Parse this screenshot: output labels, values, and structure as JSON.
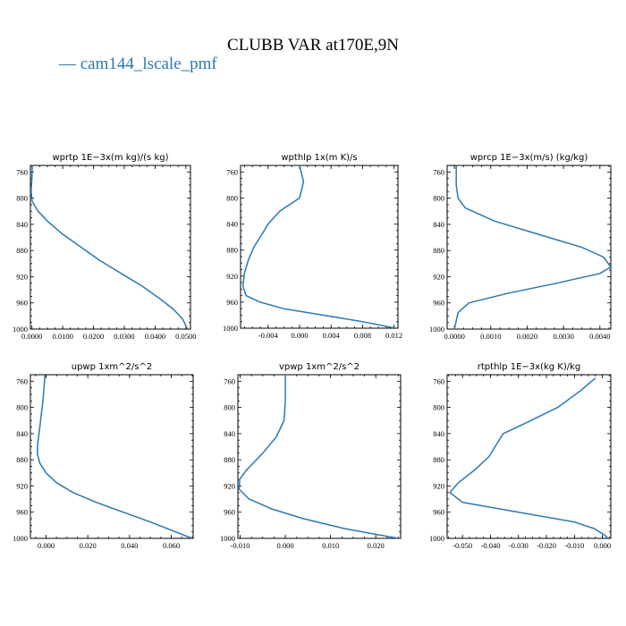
{
  "figure": {
    "title": "CLUBB VAR at170E,9N",
    "legend": [
      {
        "label": "— cam144_lscale_pmf",
        "color": "#2b78b0"
      }
    ],
    "line_color": "#2b78b0"
  },
  "chart_data": [
    {
      "type": "line",
      "title": "wprtp   1E−3x(m kg)/(s kg)",
      "xlim": [
        -0.0005,
        0.0515
      ],
      "ylim": [
        1000,
        750
      ],
      "yticks": [
        760,
        800,
        840,
        880,
        920,
        960,
        1000
      ],
      "xticks": [
        {
          "v": 0.0,
          "label": "0.0000"
        },
        {
          "v": 0.01,
          "label": "0.0100"
        },
        {
          "v": 0.02,
          "label": "0.0200"
        },
        {
          "v": 0.03,
          "label": "0.0300"
        },
        {
          "v": 0.04,
          "label": "0.0400"
        },
        {
          "v": 0.05,
          "label": "0.0500"
        }
      ],
      "series": [
        {
          "x": [
            0.0001,
            0.0,
            -0.0003,
            0.0001,
            0.002,
            0.005,
            0.01,
            0.016,
            0.022,
            0.029,
            0.036,
            0.042,
            0.046,
            0.049,
            0.0505
          ],
          "y": [
            750,
            770,
            790,
            805,
            820,
            835,
            855,
            875,
            895,
            915,
            935,
            955,
            970,
            985,
            1000
          ]
        }
      ]
    },
    {
      "type": "line",
      "title": "wpthlp   1x(m K)/s",
      "xlim": [
        -0.0075,
        0.0125
      ],
      "ylim": [
        1000,
        750
      ],
      "yticks": [
        760,
        800,
        840,
        880,
        920,
        960,
        1000
      ],
      "xticks": [
        {
          "v": -0.004,
          "label": "-0.004"
        },
        {
          "v": 0.0,
          "label": "0.000"
        },
        {
          "v": 0.004,
          "label": "0.004"
        },
        {
          "v": 0.008,
          "label": "0.008"
        },
        {
          "v": 0.012,
          "label": "0.012"
        }
      ],
      "series": [
        {
          "x": [
            0.0,
            0.0005,
            0.0,
            -0.0025,
            -0.004,
            -0.005,
            -0.0058,
            -0.0065,
            -0.007,
            -0.0072,
            -0.0068,
            -0.005,
            -0.002,
            0.003,
            0.008,
            0.0122
          ],
          "y": [
            750,
            775,
            800,
            820,
            840,
            860,
            875,
            895,
            915,
            935,
            950,
            960,
            970,
            980,
            990,
            1000
          ]
        }
      ]
    },
    {
      "type": "line",
      "title": "wprcp   1E−3x(m/s) (kg/kg)",
      "xlim": [
        -0.0002,
        0.0043
      ],
      "ylim": [
        1000,
        750
      ],
      "yticks": [
        760,
        800,
        840,
        880,
        920,
        960,
        1000
      ],
      "xticks": [
        {
          "v": 0.0,
          "label": "0.0000"
        },
        {
          "v": 0.001,
          "label": "0.0010"
        },
        {
          "v": 0.002,
          "label": "0.0020"
        },
        {
          "v": 0.003,
          "label": "0.0030"
        },
        {
          "v": 0.004,
          "label": "0.0040"
        }
      ],
      "series": [
        {
          "x": [
            5e-05,
            5e-05,
            0.0001,
            0.0003,
            0.0011,
            0.0023,
            0.0035,
            0.0041,
            0.0043,
            0.004,
            0.0028,
            0.0015,
            0.0004,
            0.0001,
            0.0
          ],
          "y": [
            750,
            780,
            800,
            815,
            835,
            855,
            875,
            890,
            905,
            915,
            930,
            945,
            960,
            975,
            1000
          ]
        }
      ]
    },
    {
      "type": "line",
      "title": "upwp   1xm^2/s^2",
      "xlim": [
        -0.0075,
        0.0705
      ],
      "ylim": [
        1000,
        750
      ],
      "yticks": [
        760,
        800,
        840,
        880,
        920,
        960,
        1000
      ],
      "xticks": [
        {
          "v": 0.0,
          "label": "0.000"
        },
        {
          "v": 0.02,
          "label": "0.020"
        },
        {
          "v": 0.04,
          "label": "0.040"
        },
        {
          "v": 0.06,
          "label": "0.060"
        }
      ],
      "series": [
        {
          "x": [
            -0.0005,
            -0.0015,
            -0.003,
            -0.004,
            -0.0042,
            -0.003,
            0.0,
            0.005,
            0.013,
            0.024,
            0.037,
            0.05,
            0.062,
            0.07
          ],
          "y": [
            750,
            790,
            830,
            855,
            870,
            885,
            900,
            915,
            930,
            945,
            960,
            975,
            990,
            1000
          ]
        }
      ]
    },
    {
      "type": "line",
      "title": "vpwp   1xm^2/s^2",
      "xlim": [
        -0.0105,
        0.0255
      ],
      "ylim": [
        1000,
        750
      ],
      "yticks": [
        760,
        800,
        840,
        880,
        920,
        960,
        1000
      ],
      "xticks": [
        {
          "v": -0.01,
          "label": "-0.010"
        },
        {
          "v": 0.0,
          "label": "0.000"
        },
        {
          "v": 0.01,
          "label": "0.010"
        },
        {
          "v": 0.02,
          "label": "0.020"
        }
      ],
      "series": [
        {
          "x": [
            0.0,
            0.0,
            -0.0003,
            -0.002,
            -0.005,
            -0.0085,
            -0.0101,
            -0.0102,
            -0.008,
            -0.003,
            0.004,
            0.013,
            0.0225,
            0.025
          ],
          "y": [
            750,
            790,
            820,
            845,
            870,
            895,
            910,
            925,
            940,
            955,
            970,
            985,
            997,
            1000
          ]
        }
      ]
    },
    {
      "type": "line",
      "title": "rtpthlp   1E−3x(kg K)/kg",
      "xlim": [
        -0.0555,
        0.003
      ],
      "ylim": [
        1000,
        750
      ],
      "yticks": [
        760,
        800,
        840,
        880,
        920,
        960,
        1000
      ],
      "xticks": [
        {
          "v": -0.05,
          "label": "-0.050"
        },
        {
          "v": -0.04,
          "label": "-0.040"
        },
        {
          "v": -0.03,
          "label": "-0.030"
        },
        {
          "v": -0.02,
          "label": "-0.020"
        },
        {
          "v": -0.01,
          "label": "-0.010"
        },
        {
          "v": 0.0,
          "label": "0.000"
        }
      ],
      "series": [
        {
          "x": [
            -0.0025,
            -0.008,
            -0.016,
            -0.028,
            -0.0355,
            -0.0405,
            -0.0455,
            -0.0515,
            -0.0545,
            -0.05,
            -0.03,
            -0.01,
            -0.003,
            0.0008,
            0.002
          ],
          "y": [
            755,
            775,
            800,
            825,
            840,
            875,
            895,
            915,
            930,
            945,
            960,
            975,
            985,
            995,
            1000
          ]
        }
      ]
    }
  ]
}
